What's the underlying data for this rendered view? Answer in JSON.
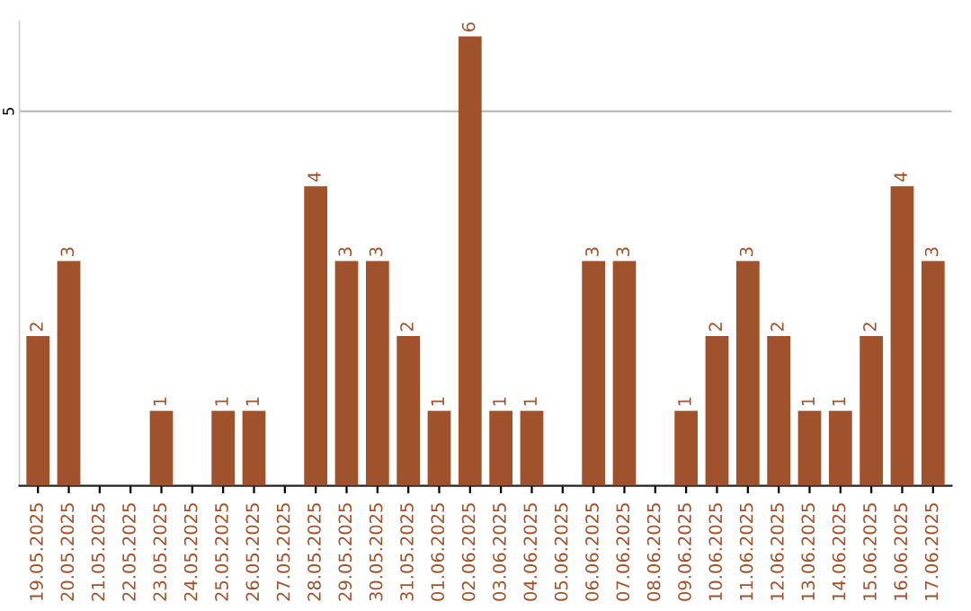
{
  "chart_data": {
    "type": "bar",
    "categories": [
      "19.05.2025",
      "20.05.2025",
      "21.05.2025",
      "22.05.2025",
      "23.05.2025",
      "24.05.2025",
      "25.05.2025",
      "26.05.2025",
      "27.05.2025",
      "28.05.2025",
      "29.05.2025",
      "30.05.2025",
      "31.05.2025",
      "01.06.2025",
      "02.06.2025",
      "03.06.2025",
      "04.06.2025",
      "05.06.2025",
      "06.06.2025",
      "07.06.2025",
      "08.06.2025",
      "09.06.2025",
      "10.06.2025",
      "11.06.2025",
      "12.06.2025",
      "13.06.2025",
      "14.06.2025",
      "15.06.2025",
      "16.06.2025",
      "17.06.2025"
    ],
    "values": [
      2,
      3,
      0,
      0,
      1,
      0,
      1,
      1,
      0,
      4,
      3,
      3,
      2,
      1,
      6,
      1,
      1,
      0,
      3,
      3,
      0,
      1,
      2,
      3,
      2,
      1,
      1,
      2,
      4,
      3
    ],
    "value_labels": [
      "2",
      "3",
      null,
      null,
      "1",
      null,
      "1",
      "1",
      null,
      "4",
      "3",
      "3",
      "2",
      "1",
      "6",
      "1",
      "1",
      null,
      "3",
      "3",
      null,
      "1",
      "2",
      "3",
      "2",
      "1",
      "1",
      "2",
      "4",
      "3"
    ],
    "color": "#a0522d",
    "ylim": [
      0,
      6.2
    ],
    "yticks": [
      5
    ],
    "grid": "y",
    "legend": false
  }
}
